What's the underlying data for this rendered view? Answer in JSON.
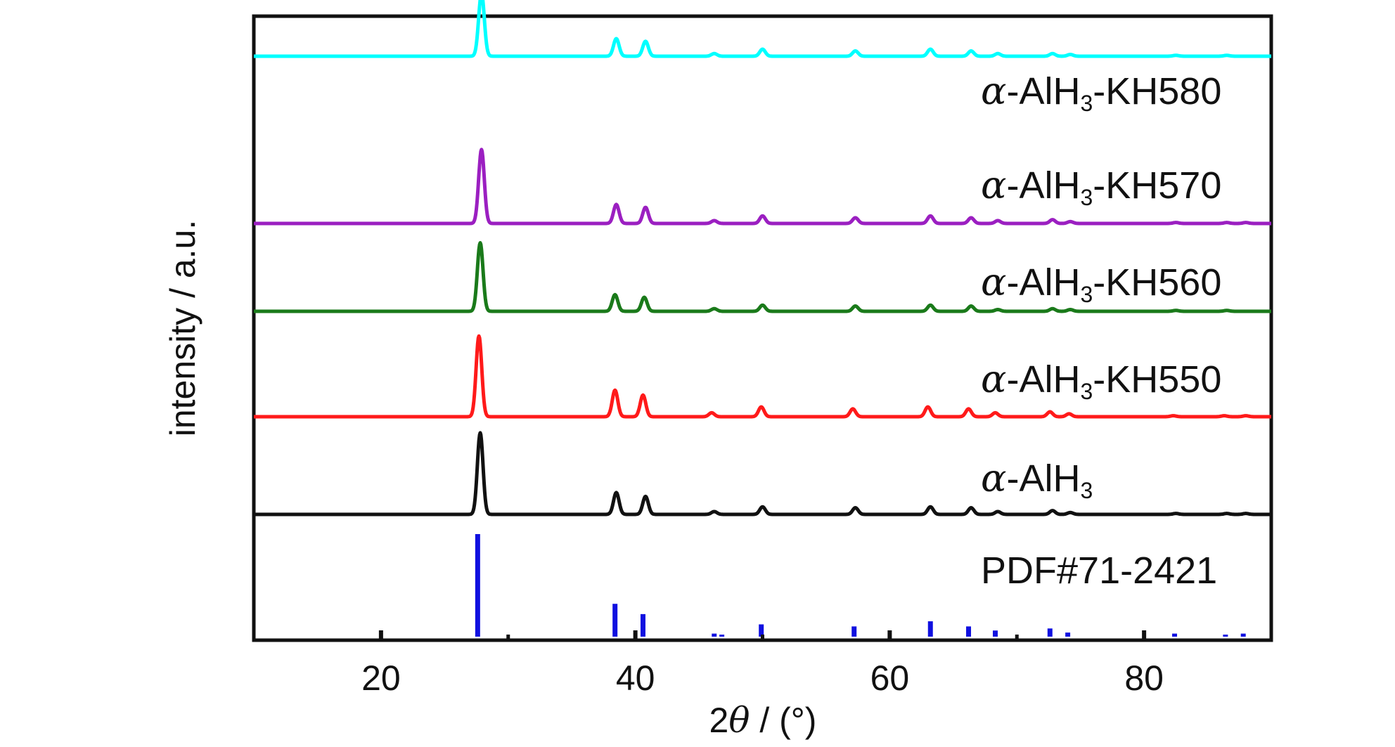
{
  "chart_data": {
    "type": "line",
    "xlabel_prefix": "2",
    "xlabel_symbol": "θ",
    "xlabel_suffix": " / (°)",
    "ylabel": "intensity / a.u.",
    "xlim": [
      10,
      90
    ],
    "x_ticks": [
      20,
      40,
      60,
      80
    ],
    "x_tick_labels": [
      "20",
      "40",
      "60",
      "80"
    ],
    "grid": false,
    "legend": "inline labels at right of each trace",
    "peak_width": 0.22,
    "series": [
      {
        "name_greek": "α",
        "name_main": "-AlH",
        "name_sub": "3",
        "name_tail": "-KH580",
        "color": "#00ffff",
        "baseline": 0.88,
        "peaks": [
          [
            27.9,
            0.72
          ],
          [
            38.5,
            0.2
          ],
          [
            40.8,
            0.17
          ],
          [
            46.2,
            0.03
          ],
          [
            50.0,
            0.08
          ],
          [
            57.3,
            0.06
          ],
          [
            63.2,
            0.08
          ],
          [
            66.4,
            0.06
          ],
          [
            68.5,
            0.03
          ],
          [
            72.8,
            0.03
          ],
          [
            74.2,
            0.02
          ],
          [
            82.5,
            0.01
          ],
          [
            86.5,
            0.01
          ]
        ]
      },
      {
        "name_greek": "α",
        "name_main": "-AlH",
        "name_sub": "3",
        "name_tail": "-KH570",
        "color": "#9b1fc1",
        "baseline": 0.0,
        "peaks": [
          [
            27.9,
            0.78
          ],
          [
            38.5,
            0.2
          ],
          [
            40.8,
            0.17
          ],
          [
            46.2,
            0.03
          ],
          [
            50.0,
            0.08
          ],
          [
            57.3,
            0.06
          ],
          [
            63.2,
            0.08
          ],
          [
            66.4,
            0.06
          ],
          [
            68.5,
            0.03
          ],
          [
            72.8,
            0.04
          ],
          [
            74.2,
            0.02
          ],
          [
            82.5,
            0.01
          ],
          [
            86.5,
            0.01
          ],
          [
            88.0,
            0.01
          ]
        ]
      },
      {
        "name_greek": "α",
        "name_main": "-AlH",
        "name_sub": "3",
        "name_tail": "-KH560",
        "color": "#1a7a1a",
        "baseline": 0.0,
        "peaks": [
          [
            27.8,
            0.78
          ],
          [
            38.4,
            0.19
          ],
          [
            40.7,
            0.16
          ],
          [
            46.2,
            0.03
          ],
          [
            50.0,
            0.07
          ],
          [
            57.3,
            0.06
          ],
          [
            63.2,
            0.07
          ],
          [
            66.4,
            0.06
          ],
          [
            68.5,
            0.02
          ],
          [
            72.8,
            0.03
          ],
          [
            74.2,
            0.02
          ],
          [
            82.5,
            0.01
          ],
          [
            86.5,
            0.01
          ]
        ]
      },
      {
        "name_greek": "α",
        "name_main": "-AlH",
        "name_sub": "3",
        "name_tail": "-KH550",
        "color": "#ff1a1a",
        "baseline": 0.0,
        "peaks": [
          [
            27.7,
            0.82
          ],
          [
            38.4,
            0.27
          ],
          [
            40.6,
            0.22
          ],
          [
            46.0,
            0.04
          ],
          [
            49.9,
            0.1
          ],
          [
            57.1,
            0.08
          ],
          [
            63.0,
            0.1
          ],
          [
            66.2,
            0.08
          ],
          [
            68.3,
            0.04
          ],
          [
            72.6,
            0.05
          ],
          [
            74.1,
            0.03
          ],
          [
            82.3,
            0.01
          ],
          [
            86.3,
            0.01
          ],
          [
            88.0,
            0.01
          ]
        ]
      },
      {
        "name_greek": "α",
        "name_main": "-AlH",
        "name_sub": "3",
        "name_tail": "",
        "color": "#111111",
        "baseline": 0.0,
        "peaks": [
          [
            27.8,
            0.86
          ],
          [
            38.5,
            0.23
          ],
          [
            40.8,
            0.19
          ],
          [
            46.2,
            0.03
          ],
          [
            50.0,
            0.08
          ],
          [
            57.3,
            0.07
          ],
          [
            63.2,
            0.08
          ],
          [
            66.4,
            0.07
          ],
          [
            68.5,
            0.03
          ],
          [
            72.8,
            0.04
          ],
          [
            74.2,
            0.02
          ],
          [
            82.5,
            0.01
          ],
          [
            86.5,
            0.01
          ],
          [
            88.0,
            0.01
          ]
        ]
      }
    ],
    "reference": {
      "name": "PDF#71-2421",
      "color": "#1010e0",
      "lines": [
        [
          27.6,
          1.0
        ],
        [
          38.4,
          0.32
        ],
        [
          40.6,
          0.22
        ],
        [
          46.2,
          0.03
        ],
        [
          46.8,
          0.02
        ],
        [
          49.9,
          0.12
        ],
        [
          57.2,
          0.1
        ],
        [
          63.2,
          0.15
        ],
        [
          66.2,
          0.1
        ],
        [
          68.3,
          0.06
        ],
        [
          72.6,
          0.08
        ],
        [
          74.0,
          0.04
        ],
        [
          82.4,
          0.03
        ],
        [
          86.4,
          0.02
        ],
        [
          87.8,
          0.03
        ]
      ]
    }
  }
}
